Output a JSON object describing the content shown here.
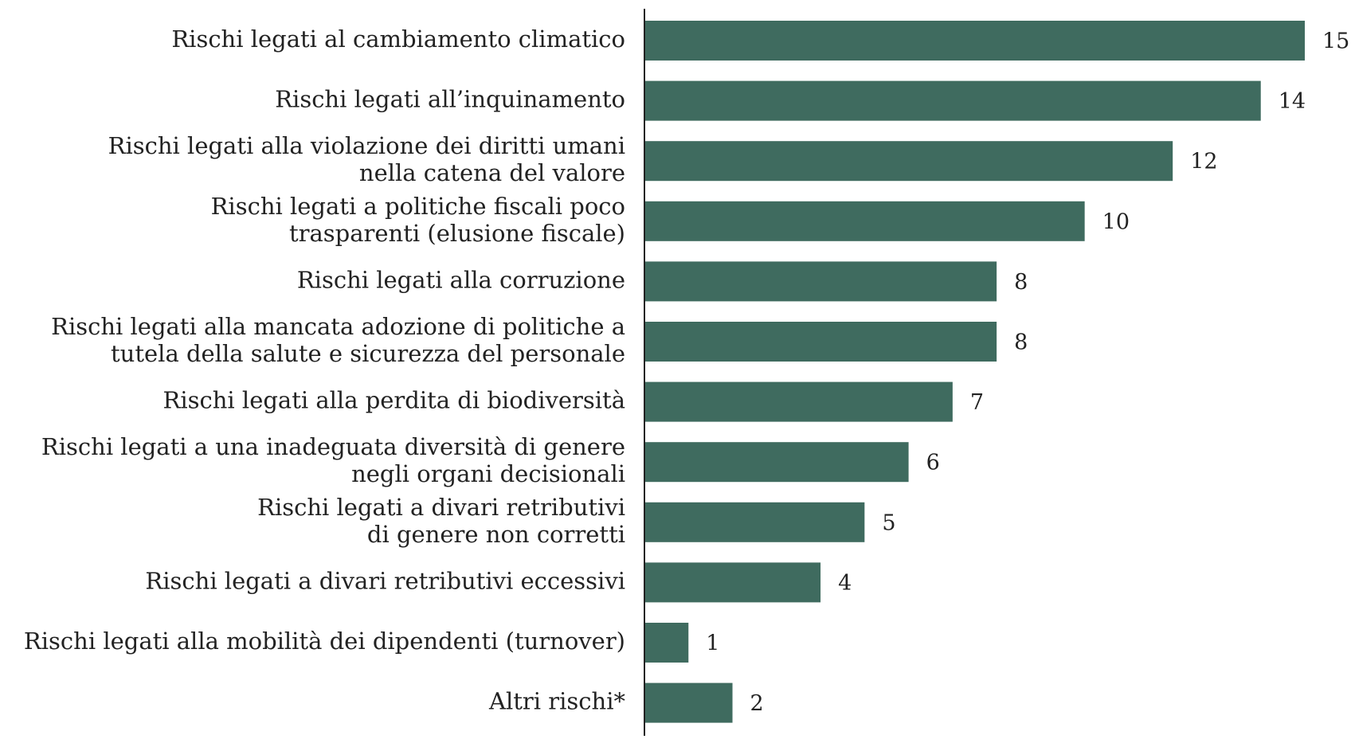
{
  "chart_data": {
    "type": "barh",
    "categories": [
      "Rischi legati al cambiamento climatico",
      "Rischi legati all’inquinamento",
      "Rischi legati alla violazione dei diritti umani\nnella catena del valore",
      "Rischi legati a politiche fiscali poco\ntrasparenti (elusione fiscale)",
      "Rischi legati alla corruzione",
      "Rischi legati alla mancata adozione di politiche a\ntutela della salute e sicurezza del personale",
      "Rischi legati alla perdita di biodiversità",
      "Rischi legati a una inadeguata diversità di genere\nnegli organi decisionali",
      "Rischi legati a divari retributivi\ndi genere non corretti",
      "Rischi legati a divari retributivi eccessivi",
      "Rischi legati alla mobilità dei dipendenti (turnover)",
      "Altri rischi*"
    ],
    "values": [
      15,
      14,
      12,
      10,
      8,
      8,
      7,
      6,
      5,
      4,
      1,
      2
    ],
    "color": "#3f6b5f"
  }
}
